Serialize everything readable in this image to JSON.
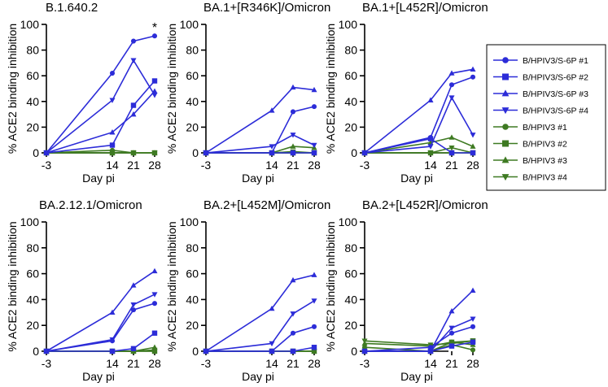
{
  "chart_data": [
    {
      "type": "line",
      "title": "B.1.640.2",
      "ylabel": "% ACE2 binding inhibition",
      "xlabel": "Day pi",
      "x": [
        -3,
        14,
        21,
        28
      ],
      "ylim": [
        0,
        100
      ],
      "yticks": [
        0,
        20,
        40,
        60,
        80,
        100
      ],
      "annotation": "*",
      "series": [
        {
          "name": "B/HPIV3/S-6P #1",
          "values": [
            0,
            62,
            87,
            91
          ]
        },
        {
          "name": "B/HPIV3/S-6P #2",
          "values": [
            0,
            6,
            37,
            56
          ]
        },
        {
          "name": "B/HPIV3/S-6P #3",
          "values": [
            0,
            16,
            30,
            48
          ]
        },
        {
          "name": "B/HPIV3/S-6P #4",
          "values": [
            0,
            41,
            72,
            45
          ]
        },
        {
          "name": "B/HPIV3 #1",
          "values": [
            0,
            2,
            0,
            0
          ]
        },
        {
          "name": "B/HPIV3 #2",
          "values": [
            0,
            0,
            0,
            0
          ]
        },
        {
          "name": "B/HPIV3 #3",
          "values": [
            0,
            0,
            0,
            0
          ]
        },
        {
          "name": "B/HPIV3 #4",
          "values": [
            0,
            0,
            0,
            0
          ]
        }
      ]
    },
    {
      "type": "line",
      "title": "BA.1+[R346K]/Omicron",
      "ylabel": "% ACE2 binding inhibition",
      "xlabel": "Day pi",
      "x": [
        -3,
        14,
        21,
        28
      ],
      "ylim": [
        0,
        100
      ],
      "yticks": [
        0,
        20,
        40,
        60,
        80,
        100
      ],
      "series": [
        {
          "name": "B/HPIV3/S-6P #1",
          "values": [
            0,
            0,
            32,
            36
          ]
        },
        {
          "name": "B/HPIV3/S-6P #2",
          "values": [
            0,
            0,
            0,
            0
          ]
        },
        {
          "name": "B/HPIV3/S-6P #3",
          "values": [
            0,
            33,
            51,
            49
          ]
        },
        {
          "name": "B/HPIV3/S-6P #4",
          "values": [
            0,
            5,
            14,
            6
          ]
        },
        {
          "name": "B/HPIV3 #1",
          "values": [
            0,
            0,
            0,
            0
          ]
        },
        {
          "name": "B/HPIV3 #2",
          "values": [
            0,
            0,
            0,
            0
          ]
        },
        {
          "name": "B/HPIV3 #3",
          "values": [
            0,
            0,
            5,
            4
          ]
        },
        {
          "name": "B/HPIV3 #4",
          "values": [
            0,
            0,
            1,
            0
          ]
        }
      ]
    },
    {
      "type": "line",
      "title": "BA.1+[L452R]/Omicron",
      "ylabel": "% ACE2 binding inhibition",
      "xlabel": "Day pi",
      "x": [
        -3,
        14,
        21,
        28
      ],
      "ylim": [
        0,
        100
      ],
      "yticks": [
        0,
        20,
        40,
        60,
        80,
        100
      ],
      "series": [
        {
          "name": "B/HPIV3/S-6P #1",
          "values": [
            0,
            12,
            53,
            59
          ]
        },
        {
          "name": "B/HPIV3/S-6P #2",
          "values": [
            0,
            11,
            0,
            0
          ]
        },
        {
          "name": "B/HPIV3/S-6P #3",
          "values": [
            0,
            41,
            62,
            65
          ]
        },
        {
          "name": "B/HPIV3/S-6P #4",
          "values": [
            0,
            5,
            43,
            14
          ]
        },
        {
          "name": "B/HPIV3 #1",
          "values": [
            0,
            0,
            0,
            0
          ]
        },
        {
          "name": "B/HPIV3 #2",
          "values": [
            0,
            0,
            0,
            0
          ]
        },
        {
          "name": "B/HPIV3 #3",
          "values": [
            0,
            8,
            12,
            5
          ]
        },
        {
          "name": "B/HPIV3 #4",
          "values": [
            0,
            0,
            4,
            0
          ]
        }
      ]
    },
    {
      "type": "line",
      "title": "BA.2.12.1/Omicron",
      "ylabel": "% ACE2 binding inhibition",
      "xlabel": "Day pi",
      "x": [
        -3,
        14,
        21,
        28
      ],
      "ylim": [
        0,
        100
      ],
      "yticks": [
        0,
        20,
        40,
        60,
        80,
        100
      ],
      "series": [
        {
          "name": "B/HPIV3/S-6P #1",
          "values": [
            0,
            8,
            32,
            37
          ]
        },
        {
          "name": "B/HPIV3/S-6P #2",
          "values": [
            0,
            0,
            2,
            14
          ]
        },
        {
          "name": "B/HPIV3/S-6P #3",
          "values": [
            0,
            30,
            51,
            62
          ]
        },
        {
          "name": "B/HPIV3/S-6P #4",
          "values": [
            0,
            9,
            36,
            44
          ]
        },
        {
          "name": "B/HPIV3 #1",
          "values": [
            0,
            0,
            0,
            0
          ]
        },
        {
          "name": "B/HPIV3 #2",
          "values": [
            0,
            0,
            0,
            0
          ]
        },
        {
          "name": "B/HPIV3 #3",
          "values": [
            0,
            0,
            0,
            3
          ]
        },
        {
          "name": "B/HPIV3 #4",
          "values": [
            0,
            0,
            0,
            1
          ]
        }
      ]
    },
    {
      "type": "line",
      "title": "BA.2+[L452M]/Omicron",
      "ylabel": "% ACE2 binding inhibition",
      "xlabel": "Day pi",
      "x": [
        -3,
        14,
        21,
        28
      ],
      "ylim": [
        0,
        100
      ],
      "yticks": [
        0,
        20,
        40,
        60,
        80,
        100
      ],
      "series": [
        {
          "name": "B/HPIV3/S-6P #1",
          "values": [
            0,
            0,
            14,
            19
          ]
        },
        {
          "name": "B/HPIV3/S-6P #2",
          "values": [
            0,
            0,
            0,
            3
          ]
        },
        {
          "name": "B/HPIV3/S-6P #3",
          "values": [
            0,
            33,
            55,
            59
          ]
        },
        {
          "name": "B/HPIV3/S-6P #4",
          "values": [
            0,
            6,
            29,
            39
          ]
        },
        {
          "name": "B/HPIV3 #1",
          "values": [
            0,
            0,
            0,
            0
          ]
        },
        {
          "name": "B/HPIV3 #2",
          "values": [
            0,
            0,
            0,
            0
          ]
        },
        {
          "name": "B/HPIV3 #3",
          "values": [
            0,
            0,
            0,
            0
          ]
        },
        {
          "name": "B/HPIV3 #4",
          "values": [
            0,
            0,
            0,
            0
          ]
        }
      ]
    },
    {
      "type": "line",
      "title": "BA.2+[L452R]/Omicron",
      "ylabel": "% ACE2 binding inhibition",
      "xlabel": "Day pi",
      "x": [
        -3,
        14,
        21,
        28
      ],
      "ylim": [
        0,
        100
      ],
      "yticks": [
        0,
        20,
        40,
        60,
        80,
        100
      ],
      "series": [
        {
          "name": "B/HPIV3/S-6P #1",
          "values": [
            0,
            3,
            14,
            19
          ]
        },
        {
          "name": "B/HPIV3/S-6P #2",
          "values": [
            0,
            0,
            4,
            7
          ]
        },
        {
          "name": "B/HPIV3/S-6P #3",
          "values": [
            0,
            0,
            31,
            47
          ]
        },
        {
          "name": "B/HPIV3/S-6P #4",
          "values": [
            0,
            0,
            18,
            25
          ]
        },
        {
          "name": "B/HPIV3 #1",
          "values": [
            3,
            0,
            5,
            1
          ]
        },
        {
          "name": "B/HPIV3 #2",
          "values": [
            0,
            0,
            7,
            8
          ]
        },
        {
          "name": "B/HPIV3 #3",
          "values": [
            6,
            4,
            7,
            5
          ]
        },
        {
          "name": "B/HPIV3 #4",
          "values": [
            8,
            5,
            6,
            8
          ]
        }
      ]
    }
  ],
  "legend": {
    "items": [
      {
        "label": "B/HPIV3/S-6P #1",
        "color": "#2c2cd8",
        "marker": "circle-marker-icon"
      },
      {
        "label": "B/HPIV3/S-6P #2",
        "color": "#2c2cd8",
        "marker": "square-marker-icon"
      },
      {
        "label": "B/HPIV3/S-6P #3",
        "color": "#2c2cd8",
        "marker": "triangle-up-marker-icon"
      },
      {
        "label": "B/HPIV3/S-6P #4",
        "color": "#2c2cd8",
        "marker": "triangle-down-marker-icon"
      },
      {
        "label": "B/HPIV3 #1",
        "color": "#3e7a22",
        "marker": "circle-marker-icon"
      },
      {
        "label": "B/HPIV3 #2",
        "color": "#3e7a22",
        "marker": "square-marker-icon"
      },
      {
        "label": "B/HPIV3 #3",
        "color": "#3e7a22",
        "marker": "triangle-up-marker-icon"
      },
      {
        "label": "B/HPIV3 #4",
        "color": "#3e7a22",
        "marker": "triangle-down-marker-icon"
      }
    ]
  },
  "colors": {
    "vaccine": "#2c2cd8",
    "control": "#3e7a22",
    "axis": "#000000"
  }
}
